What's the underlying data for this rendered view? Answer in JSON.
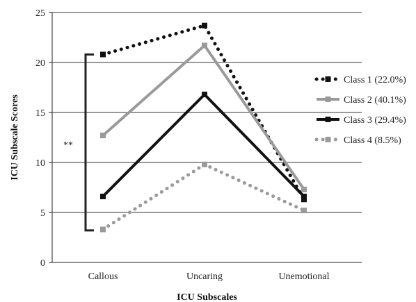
{
  "chart_data": {
    "type": "line",
    "title": "",
    "xlabel": "ICU Subscales",
    "ylabel": "ICU Subscale Scores",
    "categories": [
      "Callous",
      "Uncaring",
      "Unemotional"
    ],
    "ylim": [
      0,
      25
    ],
    "yticks": [
      0,
      5,
      10,
      15,
      20,
      25
    ],
    "grid": "horizontal",
    "legend_position": "right",
    "series": [
      {
        "name": "Class 1 (22.0%)",
        "values": [
          20.8,
          23.7,
          6.3
        ],
        "color": "#111111",
        "style": "dotted"
      },
      {
        "name": "Class 2 (40.1%)",
        "values": [
          12.7,
          21.7,
          7.3
        ],
        "color": "#9a9a9a",
        "style": "solid"
      },
      {
        "name": "Class 3 (29.4%)",
        "values": [
          6.6,
          16.8,
          6.6
        ],
        "color": "#111111",
        "style": "solid"
      },
      {
        "name": "Class 4 (8.5%)",
        "values": [
          3.3,
          9.8,
          5.2
        ],
        "color": "#9a9a9a",
        "style": "dotted"
      }
    ],
    "annotation": {
      "text": "**",
      "bracket_range": [
        3.2,
        20.8
      ]
    }
  }
}
